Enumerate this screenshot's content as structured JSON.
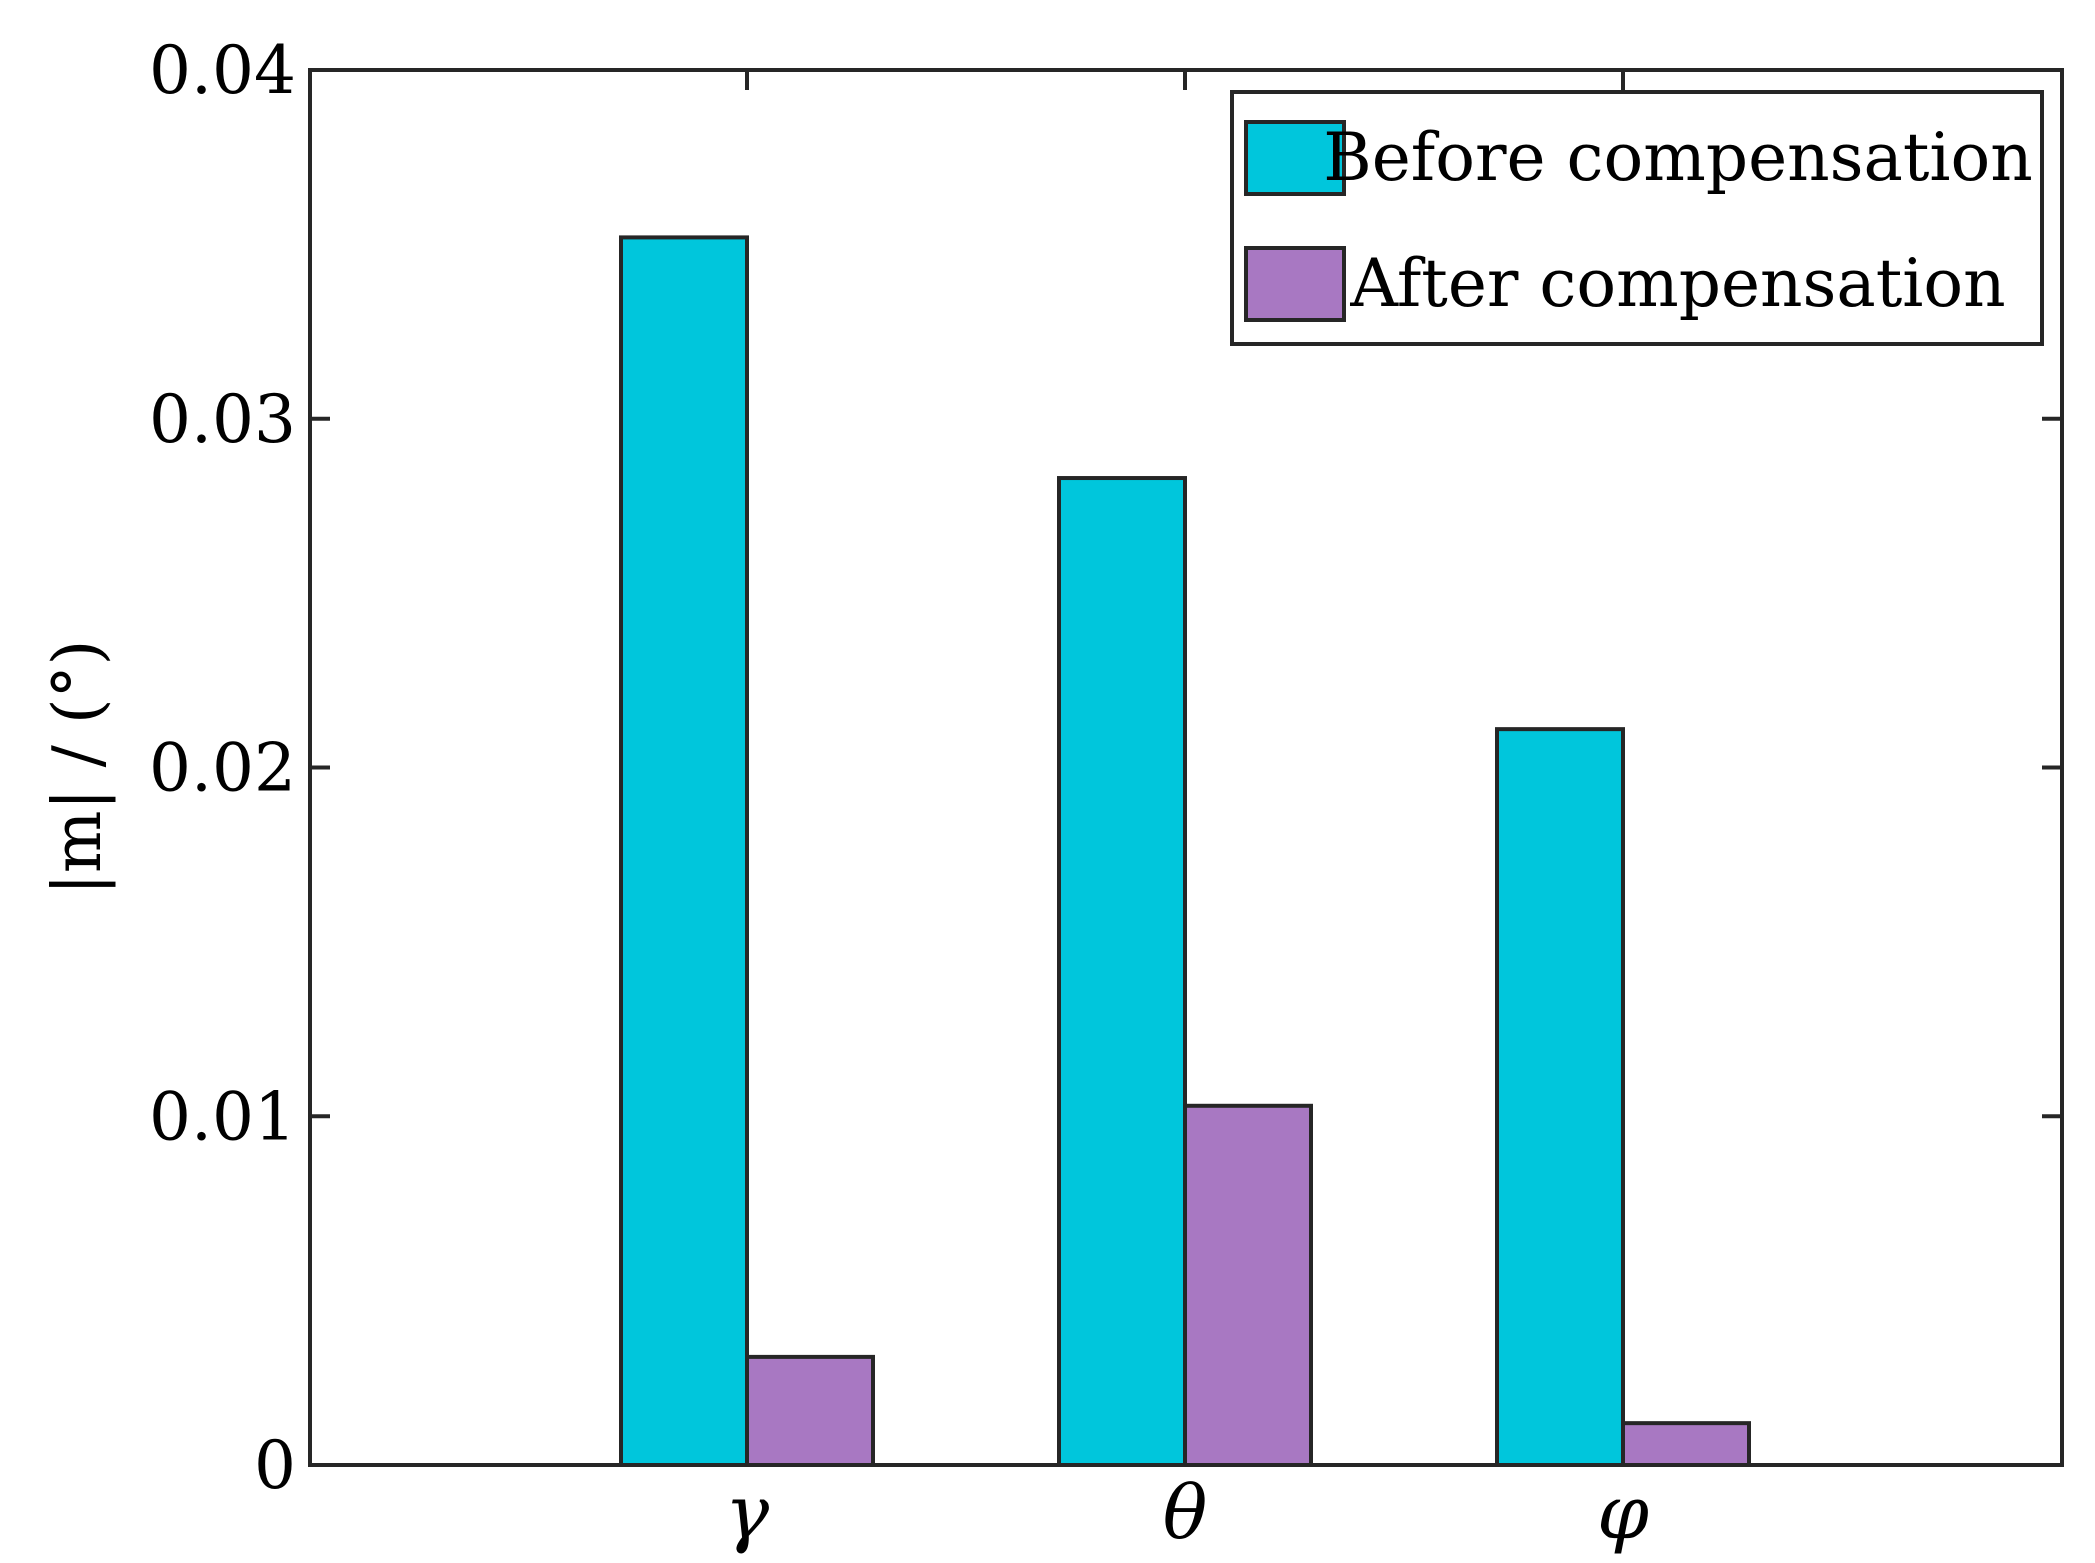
{
  "chart_data": {
    "type": "bar",
    "categories": [
      "γ",
      "θ",
      "φ"
    ],
    "series": [
      {
        "name": "Before compensation",
        "values": [
          0.0352,
          0.0283,
          0.0211
        ],
        "color": "#00C6DC"
      },
      {
        "name": "After compensation",
        "values": [
          0.0031,
          0.0103,
          0.0012
        ],
        "color": "#A878C2"
      }
    ],
    "xlabel": "",
    "ylabel": "|m| / (°)",
    "ylim": [
      0,
      0.04
    ],
    "yticks": [
      0,
      0.01,
      0.02,
      0.03,
      0.04
    ],
    "ytick_labels": [
      "0",
      "0.01",
      "0.02",
      "0.03",
      "0.04"
    ],
    "grid": false,
    "legend_position": "top-right"
  }
}
